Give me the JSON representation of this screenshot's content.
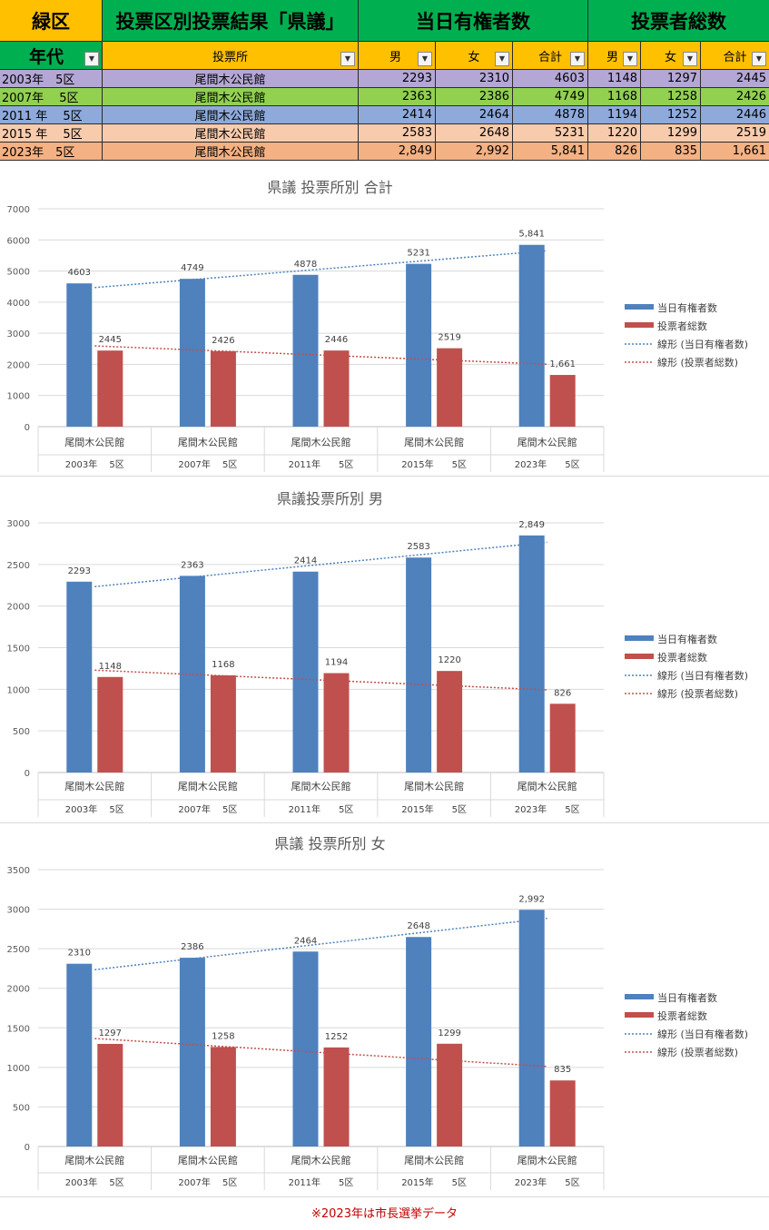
{
  "header": {
    "district": "緑区",
    "title": "投票区別投票結果「県議」",
    "registered": "当日有権者数",
    "voters": "投票者総数",
    "age_label": "年代",
    "place_label": "投票所",
    "male": "男",
    "female": "女",
    "total": "合計"
  },
  "rows": [
    {
      "period": "2003年　5区",
      "place": "尾間木公民館",
      "reg_m": "2293",
      "reg_f": "2310",
      "reg_t": "4603",
      "vot_m": "1148",
      "vot_f": "1297",
      "vot_t": "2445",
      "color": "#b4a7d6"
    },
    {
      "period": "2007年　 5区",
      "place": "尾間木公民館",
      "reg_m": "2363",
      "reg_f": "2386",
      "reg_t": "4749",
      "vot_m": "1168",
      "vot_f": "1258",
      "vot_t": "2426",
      "color": "#92d050"
    },
    {
      "period": "2011 年　 5区",
      "place": "尾間木公民館",
      "reg_m": "2414",
      "reg_f": "2464",
      "reg_t": "4878",
      "vot_m": "1194",
      "vot_f": "1252",
      "vot_t": "2446",
      "color": "#8eaadb"
    },
    {
      "period": "2015 年　 5区",
      "place": "尾間木公民館",
      "reg_m": "2583",
      "reg_f": "2648",
      "reg_t": "5231",
      "vot_m": "1220",
      "vot_f": "1299",
      "vot_t": "2519",
      "color": "#f8cbad"
    },
    {
      "period": "2023年　5区",
      "place": "尾間木公民館",
      "reg_m": "2,849",
      "reg_f": "2,992",
      "reg_t": "5,841",
      "vot_m": "826",
      "vot_f": "835",
      "vot_t": "1,661",
      "color": "#f4b183"
    }
  ],
  "colors": {
    "green": "#00b050",
    "yellow": "#ffc000",
    "bar_blue": "#4f81bd",
    "bar_red": "#c0504d"
  },
  "chart_data": [
    {
      "type": "bar",
      "title": "県議  投票所別  合計",
      "categories": [
        "尾間木公民館",
        "尾間木公民館",
        "尾間木公民館",
        "尾間木公民館",
        "尾間木公民館"
      ],
      "periods": [
        "2003年　 5区",
        "2007年　 5区",
        "2011年　　5区",
        "2015年　　5区",
        "2023年　　5区"
      ],
      "series": [
        {
          "name": "当日有権者数",
          "values": [
            4603,
            4749,
            4878,
            5231,
            5841
          ],
          "labels": [
            "4603",
            "4749",
            "4878",
            "5231",
            "5,841"
          ]
        },
        {
          "name": "投票者総数",
          "values": [
            2445,
            2426,
            2446,
            2519,
            1661
          ],
          "labels": [
            "2445",
            "2426",
            "2446",
            "2519",
            "1,661"
          ]
        }
      ],
      "trendlines": [
        "線形 (当日有権者数)",
        "線形 (投票者総数)"
      ],
      "ylim": [
        0,
        7000
      ],
      "yticks": [
        0,
        1000,
        2000,
        3000,
        4000,
        5000,
        6000,
        7000
      ],
      "grid": true,
      "legend": "right"
    },
    {
      "type": "bar",
      "title": "県議投票所別  男",
      "categories": [
        "尾間木公民館",
        "尾間木公民館",
        "尾間木公民館",
        "尾間木公民館",
        "尾間木公民館"
      ],
      "periods": [
        "2003年　 5区",
        "2007年　 5区",
        "2011年　　5区",
        "2015年　　5区",
        "2023年　　5区"
      ],
      "series": [
        {
          "name": "当日有権者数",
          "values": [
            2293,
            2363,
            2414,
            2583,
            2849
          ],
          "labels": [
            "2293",
            "2363",
            "2414",
            "2583",
            "2,849"
          ]
        },
        {
          "name": "投票者総数",
          "values": [
            1148,
            1168,
            1194,
            1220,
            826
          ],
          "labels": [
            "1148",
            "1168",
            "1194",
            "1220",
            "826"
          ]
        }
      ],
      "trendlines": [
        "線形 (当日有権者数)",
        "線形 (投票者総数)"
      ],
      "ylim": [
        0,
        3000
      ],
      "yticks": [
        0,
        500,
        1000,
        1500,
        2000,
        2500,
        3000
      ],
      "grid": true,
      "legend": "right"
    },
    {
      "type": "bar",
      "title": "県議  投票所別  女",
      "categories": [
        "尾間木公民館",
        "尾間木公民館",
        "尾間木公民館",
        "尾間木公民館",
        "尾間木公民館"
      ],
      "periods": [
        "2003年　 5区",
        "2007年　 5区",
        "2011年　　5区",
        "2015年　　5区",
        "2023年　　5区"
      ],
      "series": [
        {
          "name": "当日有権者数",
          "values": [
            2310,
            2386,
            2464,
            2648,
            2992
          ],
          "labels": [
            "2310",
            "2386",
            "2464",
            "2648",
            "2,992"
          ]
        },
        {
          "name": "投票者総数",
          "values": [
            1297,
            1258,
            1252,
            1299,
            835
          ],
          "labels": [
            "1297",
            "1258",
            "1252",
            "1299",
            "835"
          ]
        }
      ],
      "trendlines": [
        "線形 (当日有権者数)",
        "線形 (投票者総数)"
      ],
      "ylim": [
        0,
        3500
      ],
      "yticks": [
        0,
        500,
        1000,
        1500,
        2000,
        2500,
        3000,
        3500
      ],
      "grid": true,
      "legend": "right"
    }
  ],
  "note": "※2023年は市長選挙データ"
}
